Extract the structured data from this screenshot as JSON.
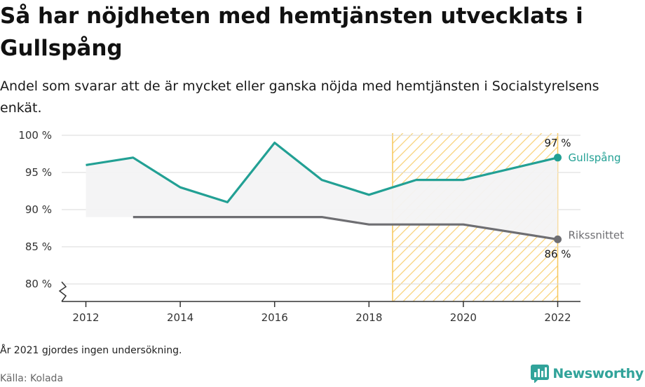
{
  "header": {
    "title": "Så har nöjdheten med hemtjänsten utvecklats i Gullspång",
    "subtitle": "Andel som svarar att de är mycket eller ganska nöjda med hemtjänsten i Socialstyrelsens enkät."
  },
  "footer": {
    "note": "År 2021 gjordes ingen undersökning.",
    "source": "Källa: Kolada",
    "brand": "Newsworthy"
  },
  "colors": {
    "gullspang": "#22a094",
    "riket": "#6e6e72",
    "highlight": "#f7c85b",
    "area": "#f3f3f4",
    "grid": "#d9d9d9",
    "brand": "#31a39a"
  },
  "chart_data": {
    "type": "line",
    "x": [
      2012,
      2013,
      2014,
      2015,
      2016,
      2017,
      2018,
      2019,
      2020,
      2022
    ],
    "series": [
      {
        "name": "Gullspång",
        "values": [
          96,
          97,
          93,
          91,
          99,
          94,
          92,
          94,
          94,
          97
        ]
      },
      {
        "name": "Rikssnittet",
        "values": [
          null,
          89,
          89,
          89,
          89,
          89,
          88,
          88,
          88,
          86
        ]
      }
    ],
    "end_labels": [
      "97 %",
      "86 %"
    ],
    "xticks": [
      2012,
      2014,
      2016,
      2018,
      2020,
      2022
    ],
    "xtick_labels": [
      "2012",
      "2014",
      "2016",
      "2018",
      "2020",
      "2022"
    ],
    "yticks": [
      80,
      85,
      90,
      95,
      100
    ],
    "ytick_labels": [
      "80 %",
      "85 %",
      "90 %",
      "95 %",
      "100 %"
    ],
    "ylim": [
      77.3,
      101.3
    ],
    "xlim": [
      2011.5,
      2022.5
    ],
    "highlight_range": [
      2018.5,
      2022
    ],
    "grid": true,
    "axis_break": true
  }
}
